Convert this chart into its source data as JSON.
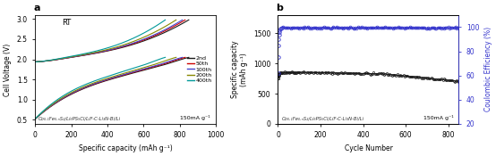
{
  "panel_a": {
    "title": "a",
    "annotation": "RT",
    "xlabel": "Specific capacity (mAh g⁻¹)",
    "ylabel": "Cell Voltage (V)",
    "xlim": [
      0,
      1000
    ],
    "ylim": [
      0.4,
      3.1
    ],
    "footnote": "Co₀.₁Fe₀.ₙS₂/Li₆PS₅Cl/LiF-C-Li₃N-Bi/Li",
    "rate": "150mA g⁻¹",
    "cycles": [
      "2nd",
      "50th",
      "100th",
      "200th",
      "400th"
    ],
    "colors": [
      "#1a1a1a",
      "#cc0000",
      "#4444cc",
      "#888800",
      "#009999"
    ],
    "max_capacity": [
      850,
      830,
      815,
      780,
      720
    ],
    "xticks": [
      0,
      200,
      400,
      600,
      800,
      1000
    ],
    "yticks": [
      0.5,
      1.0,
      1.5,
      2.0,
      2.5,
      3.0
    ]
  },
  "panel_b": {
    "title": "b",
    "xlabel": "Cycle Number",
    "ylabel": "Specific capacity\n(mAh g⁻¹)",
    "ylabel2": "Coulombic Efficiency (%)",
    "xlim": [
      0,
      850
    ],
    "ylim_left": [
      0,
      1800
    ],
    "ylim_right": [
      20,
      110
    ],
    "footnote": "Co₀.₁Fe₀.ₙS₂/Li₆PS₅Cl/LiF-C-Li₃N-Bi/Li",
    "rate": "150mA g⁻¹",
    "capacity_color": "#1a1a1a",
    "ce_color": "#3333cc",
    "yticks_left": [
      0,
      500,
      1000,
      1500
    ],
    "yticks_right": [
      20,
      40,
      60,
      80,
      100
    ],
    "xticks": [
      0,
      200,
      400,
      600,
      800
    ]
  }
}
